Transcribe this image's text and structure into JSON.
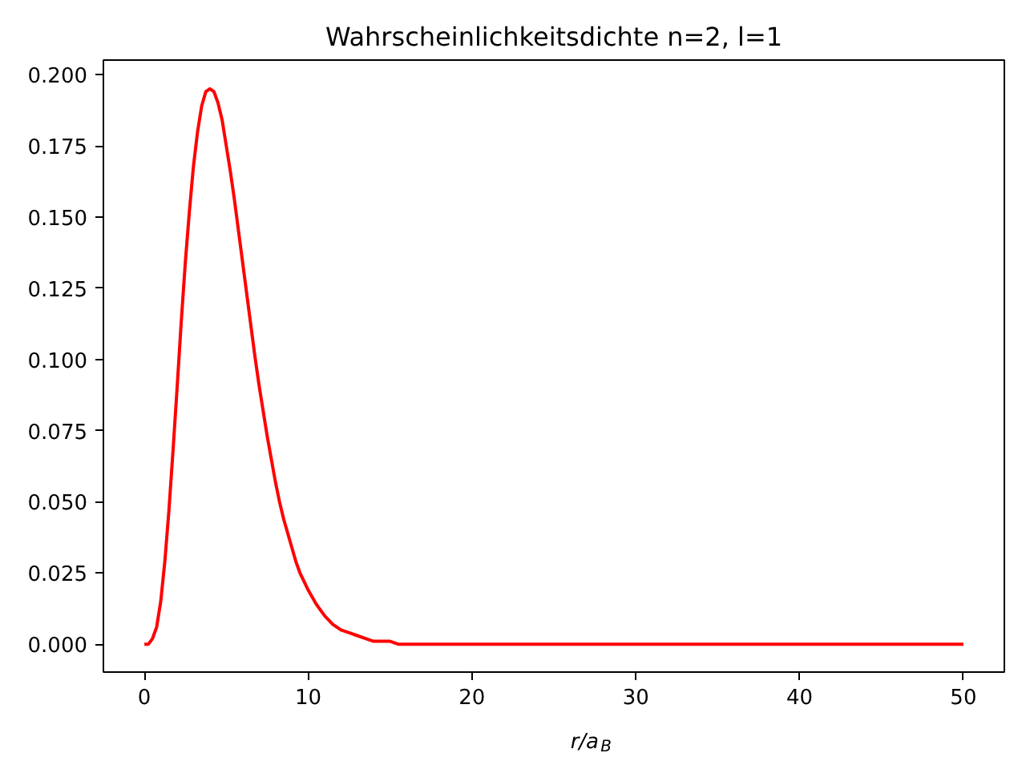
{
  "chart_data": {
    "type": "line",
    "title": "Wahrscheinlichkeitsdichte n=2, l=1",
    "xlabel": "r/a$_{B}$",
    "x": [
      0,
      0.25,
      0.5,
      0.75,
      1,
      1.25,
      1.5,
      1.75,
      2,
      2.25,
      2.5,
      2.75,
      3,
      3.25,
      3.5,
      3.75,
      4,
      4.25,
      4.5,
      4.75,
      5,
      5.25,
      5.5,
      5.75,
      6,
      6.25,
      6.5,
      6.75,
      7,
      7.25,
      7.5,
      7.75,
      8,
      8.25,
      8.5,
      8.75,
      9,
      9.25,
      9.5,
      9.75,
      10,
      10.5,
      11,
      11.5,
      12,
      12.5,
      13,
      13.5,
      14,
      14.5,
      15,
      15.5,
      16,
      17,
      18,
      20,
      25,
      30,
      35,
      40,
      45,
      50
    ],
    "values": [
      0.0,
      0.0,
      0.002,
      0.006,
      0.015,
      0.029,
      0.047,
      0.068,
      0.09,
      0.113,
      0.134,
      0.152,
      0.168,
      0.18,
      0.189,
      0.194,
      0.195,
      0.194,
      0.19,
      0.184,
      0.175,
      0.166,
      0.156,
      0.145,
      0.134,
      0.123,
      0.112,
      0.101,
      0.091,
      0.082,
      0.073,
      0.065,
      0.057,
      0.05,
      0.044,
      0.039,
      0.034,
      0.029,
      0.025,
      0.022,
      0.019,
      0.014,
      0.01,
      0.007,
      0.005,
      0.004,
      0.003,
      0.002,
      0.001,
      0.001,
      0.001,
      0.0,
      0.0,
      0.0,
      0.0,
      0.0,
      0.0,
      0.0,
      0.0,
      0.0,
      0.0,
      0.0
    ],
    "color": "#ff0000",
    "line_style": "solid",
    "xlim": [
      -2.5,
      52.5
    ],
    "xticks": [
      0,
      10,
      20,
      30,
      40,
      50
    ],
    "ylim": [
      -0.0098,
      0.2051
    ],
    "yticks": [
      {
        "value": 0,
        "label": "0.000"
      },
      0.025,
      {
        "value": 0.05,
        "label": "0.050"
      },
      0.075,
      {
        "value": 0.1,
        "label": "0.100"
      },
      0.125,
      {
        "value": 0.15,
        "label": "0.150"
      },
      0.175,
      {
        "value": 0.2,
        "label": "0.200"
      }
    ]
  }
}
